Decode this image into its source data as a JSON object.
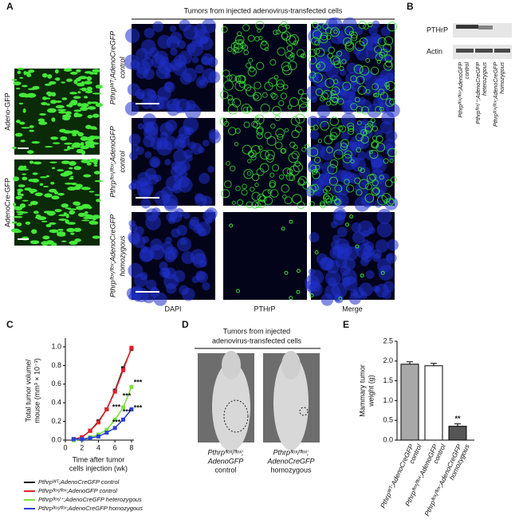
{
  "panel_labels": [
    "A",
    "B",
    "C",
    "D",
    "E"
  ],
  "panel_a": {
    "header": "Tumors from injected adenovirus-transfected cells",
    "image_labels": [
      "Adeno-GFP",
      "AdenoCre-GFP"
    ],
    "row_labels": [
      [
        "Pthrpᵂᵀ;AdenoCreGFP",
        "control"
      ],
      [
        "Pthrpᶠˡᵒˣ/ᶠˡᵒˣ;AdenoGFP",
        "control"
      ],
      [
        "Pthrpᶠˡᵒˣ/ᶠˡᵒˣ;AdenoCreGFP",
        "homozygous"
      ]
    ],
    "column_labels": [
      "DAPI",
      "PTHrP",
      "Merge"
    ]
  },
  "panel_b": {
    "bands": [
      "PTHrP",
      "Actin"
    ],
    "lane_labels": [
      [
        "Pthrpᶠˡᵒˣ/ᶠˡᵒˣ;AdenoGFP",
        "control"
      ],
      [
        "Pthrpᶠˡᵒˣ/⁺;AdenoCreGFP",
        "heterozygous"
      ],
      [
        "Pthrpᶠˡᵒˣ/ᶠˡᵒˣ;AdenoCreGFP",
        "homozygous"
      ]
    ]
  },
  "panel_d": {
    "header": [
      "Tumors from injected",
      "adenovirus-transfected cells"
    ],
    "captions": [
      [
        "Pthrpᶠˡᵒˣ/ᶠˡᵒˣ;",
        "AdenoGFP",
        "control"
      ],
      [
        "Pthrpᶠˡᵒˣ/ᶠˡᵒˣ;",
        "AdenoCreGFP",
        "homozygous"
      ]
    ]
  },
  "chart_data": [
    {
      "type": "line",
      "ylabel": [
        "Total tumor volume/",
        "mouse (mm³ × 10⁻³)"
      ],
      "xlabel": [
        "Time after tumor",
        "cells injection (wk)"
      ],
      "x": [
        1,
        2,
        3,
        4,
        5,
        6,
        7,
        8
      ],
      "xlim": [
        0,
        8.3
      ],
      "ylim": [
        0,
        1.06
      ],
      "xticks": [
        0,
        2,
        4,
        6,
        8
      ],
      "yticks": [
        {
          "value": 0,
          "label": "0.0"
        },
        {
          "value": 0.2,
          "label": "0.2"
        },
        {
          "value": 0.4,
          "label": "0.4"
        },
        {
          "value": 0.6,
          "label": "0.6"
        },
        {
          "value": 0.8,
          "label": "0.8"
        },
        {
          "value": 1,
          "label": "1.0"
        }
      ],
      "series": [
        {
          "name": "Pthrpᵂᵀ;AdenoCreGFP control",
          "color": "#111111",
          "values": [
            0.01,
            0.03,
            0.1,
            0.2,
            0.33,
            0.53,
            0.77,
            0.98
          ]
        },
        {
          "name": "Pthrpᶠˡᵒˣ/ᶠˡᵒˣ;AdenoGFP control",
          "color": "#e8202a",
          "values": [
            0.01,
            0.03,
            0.1,
            0.19,
            0.33,
            0.52,
            0.75,
            0.99
          ]
        },
        {
          "name": "Pthrpᶠˡᵒˣ/⁺;AdenoCreGFP heterozygous",
          "color": "#7de03a",
          "values": [
            0,
            0.01,
            0.03,
            0.06,
            0.11,
            0.22,
            0.35,
            0.57
          ]
        },
        {
          "name": "Pthrpᶠˡᵒˣ/ᶠˡᵒˣ;AdenoCreGFP homozygous",
          "color": "#2a3fd8",
          "values": [
            0.01,
            0.01,
            0.02,
            0.04,
            0.08,
            0.13,
            0.22,
            0.33
          ]
        }
      ],
      "annotations": [
        "***",
        "***",
        "***",
        "***",
        "***",
        "***"
      ]
    },
    {
      "type": "bar",
      "ylabel": [
        "Mammary tumor",
        "weight (g)"
      ],
      "ylim": [
        0,
        2.5
      ],
      "yticks": [
        {
          "value": 0,
          "label": "0.0"
        },
        {
          "value": 0.5,
          "label": "0.5"
        },
        {
          "value": 1,
          "label": "1.0"
        },
        {
          "value": 1.5,
          "label": "1.5"
        },
        {
          "value": 2,
          "label": "2.0"
        },
        {
          "value": 2.5,
          "label": "2.5"
        }
      ],
      "categories": [
        [
          "Pthrpᵂᵀ;AdenoCreGFP",
          "control"
        ],
        [
          "Pthrpᶠˡᵒˣ/ᶠˡᵒˣ;AdenoGFP",
          "control"
        ],
        [
          "Pthrpᶠˡᵒˣ/ᶠˡᵒˣ;AdenoCreGFP",
          "homozygous"
        ]
      ],
      "values": [
        1.92,
        1.88,
        0.35
      ],
      "colors": [
        "#a8a8a8",
        "#ffffff",
        "#555555"
      ],
      "annotations": [
        "**"
      ]
    }
  ]
}
